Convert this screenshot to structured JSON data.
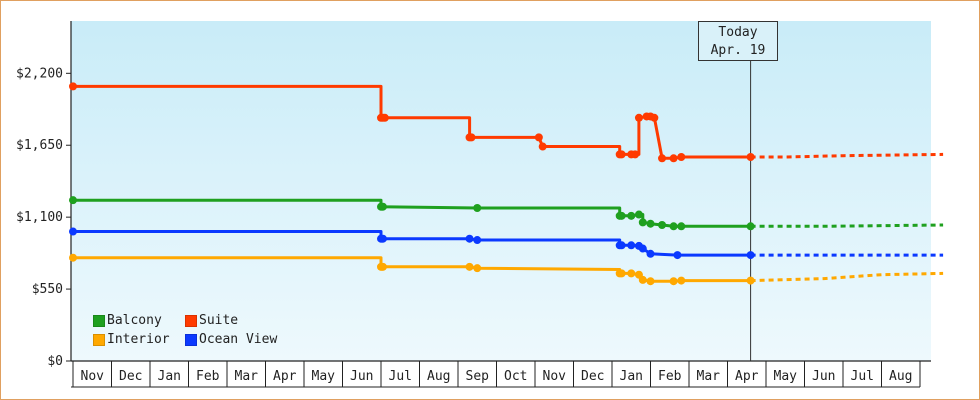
{
  "chart_data": {
    "type": "line",
    "title": "",
    "xlabel": "",
    "ylabel": "",
    "ylim": [
      0,
      2600
    ],
    "y_ticks": [
      "$0",
      "$550",
      "$1,100",
      "$1,650",
      "$2,200"
    ],
    "y_tick_values": [
      0,
      550,
      1100,
      1650,
      2200
    ],
    "x_months": [
      "Nov",
      "Dec",
      "Jan",
      "Feb",
      "Mar",
      "Apr",
      "May",
      "Jun",
      "Jul",
      "Aug",
      "Sep",
      "Oct",
      "Nov",
      "Dec",
      "Jan",
      "Feb",
      "Mar",
      "Apr",
      "May",
      "Jun",
      "Jul",
      "Aug"
    ],
    "today": {
      "line1": "Today",
      "line2": "Apr. 19",
      "x": 17.6
    },
    "grid": false,
    "legend_placement": "bottom-left",
    "series": [
      {
        "name": "Suite",
        "color": "#ff3a00",
        "points": [
          {
            "x": 0.0,
            "y": 2100
          },
          {
            "x": 8.0,
            "y": 2100
          },
          {
            "x": 8.0,
            "y": 1860
          },
          {
            "x": 8.1,
            "y": 1860
          },
          {
            "x": 10.3,
            "y": 1860
          },
          {
            "x": 10.3,
            "y": 1710
          },
          {
            "x": 12.1,
            "y": 1710
          },
          {
            "x": 12.2,
            "y": 1640
          },
          {
            "x": 14.2,
            "y": 1640
          },
          {
            "x": 14.2,
            "y": 1580
          },
          {
            "x": 14.5,
            "y": 1580
          },
          {
            "x": 14.7,
            "y": 1580
          },
          {
            "x": 14.7,
            "y": 1860
          },
          {
            "x": 14.9,
            "y": 1870
          },
          {
            "x": 15.0,
            "y": 1870
          },
          {
            "x": 15.1,
            "y": 1860
          },
          {
            "x": 15.3,
            "y": 1550
          },
          {
            "x": 15.6,
            "y": 1550
          },
          {
            "x": 15.8,
            "y": 1560
          },
          {
            "x": 17.6,
            "y": 1560
          }
        ],
        "forecast": [
          {
            "x": 17.6,
            "y": 1560
          },
          {
            "x": 18.5,
            "y": 1560
          },
          {
            "x": 20.0,
            "y": 1570
          },
          {
            "x": 22.6,
            "y": 1580
          }
        ]
      },
      {
        "name": "Balcony",
        "color": "#1fa01f",
        "points": [
          {
            "x": 0.0,
            "y": 1230
          },
          {
            "x": 8.0,
            "y": 1230
          },
          {
            "x": 8.0,
            "y": 1180
          },
          {
            "x": 10.5,
            "y": 1170
          },
          {
            "x": 14.2,
            "y": 1170
          },
          {
            "x": 14.2,
            "y": 1110
          },
          {
            "x": 14.5,
            "y": 1110
          },
          {
            "x": 14.7,
            "y": 1120
          },
          {
            "x": 14.8,
            "y": 1120
          },
          {
            "x": 14.8,
            "y": 1060
          },
          {
            "x": 15.0,
            "y": 1050
          },
          {
            "x": 15.3,
            "y": 1040
          },
          {
            "x": 15.6,
            "y": 1030
          },
          {
            "x": 15.8,
            "y": 1030
          },
          {
            "x": 17.6,
            "y": 1030
          }
        ],
        "forecast": [
          {
            "x": 17.6,
            "y": 1030
          },
          {
            "x": 19.5,
            "y": 1030
          },
          {
            "x": 22.6,
            "y": 1040
          }
        ]
      },
      {
        "name": "Ocean View",
        "color": "#0b39ff",
        "points": [
          {
            "x": 0.0,
            "y": 990
          },
          {
            "x": 8.0,
            "y": 990
          },
          {
            "x": 8.0,
            "y": 935
          },
          {
            "x": 10.3,
            "y": 935
          },
          {
            "x": 10.5,
            "y": 925
          },
          {
            "x": 14.2,
            "y": 925
          },
          {
            "x": 14.2,
            "y": 885
          },
          {
            "x": 14.5,
            "y": 885
          },
          {
            "x": 14.7,
            "y": 880
          },
          {
            "x": 14.8,
            "y": 860
          },
          {
            "x": 15.0,
            "y": 820
          },
          {
            "x": 15.3,
            "y": 815
          },
          {
            "x": 15.7,
            "y": 810
          },
          {
            "x": 17.6,
            "y": 810
          }
        ],
        "forecast": [
          {
            "x": 17.6,
            "y": 810
          },
          {
            "x": 22.6,
            "y": 810
          }
        ]
      },
      {
        "name": "Interior",
        "color": "#ffa800",
        "points": [
          {
            "x": 0.0,
            "y": 790
          },
          {
            "x": 8.0,
            "y": 790
          },
          {
            "x": 8.0,
            "y": 720
          },
          {
            "x": 10.3,
            "y": 720
          },
          {
            "x": 10.5,
            "y": 710
          },
          {
            "x": 14.2,
            "y": 700
          },
          {
            "x": 14.2,
            "y": 670
          },
          {
            "x": 14.5,
            "y": 670
          },
          {
            "x": 14.7,
            "y": 660
          },
          {
            "x": 14.8,
            "y": 620
          },
          {
            "x": 15.0,
            "y": 610
          },
          {
            "x": 15.6,
            "y": 610
          },
          {
            "x": 15.8,
            "y": 615
          },
          {
            "x": 17.6,
            "y": 615
          }
        ],
        "forecast": [
          {
            "x": 17.6,
            "y": 615
          },
          {
            "x": 19.5,
            "y": 630
          },
          {
            "x": 21.0,
            "y": 660
          },
          {
            "x": 22.6,
            "y": 670
          }
        ]
      }
    ],
    "markers": {
      "Suite": [
        0.0,
        8.0,
        8.05,
        8.1,
        10.3,
        10.35,
        12.1,
        12.2,
        14.2,
        14.25,
        14.5,
        14.6,
        14.7,
        14.9,
        15.0,
        15.1,
        15.3,
        15.6,
        15.8,
        17.6
      ],
      "Balcony": [
        0.0,
        8.0,
        8.05,
        10.5,
        14.2,
        14.25,
        14.5,
        14.7,
        14.8,
        15.0,
        15.3,
        15.6,
        15.8,
        17.6
      ],
      "Ocean View": [
        0.0,
        8.0,
        8.05,
        10.3,
        10.5,
        14.2,
        14.25,
        14.5,
        14.7,
        14.8,
        15.0,
        15.7,
        17.6
      ],
      "Interior": [
        0.0,
        8.0,
        8.05,
        10.3,
        10.5,
        14.2,
        14.25,
        14.5,
        14.7,
        14.8,
        15.0,
        15.6,
        15.8,
        17.6
      ]
    }
  },
  "legend": [
    {
      "label": "Balcony",
      "color": "#1fa01f"
    },
    {
      "label": "Suite",
      "color": "#ff3a00"
    },
    {
      "label": "Interior",
      "color": "#ffa800"
    },
    {
      "label": "Ocean View",
      "color": "#0b39ff"
    }
  ]
}
